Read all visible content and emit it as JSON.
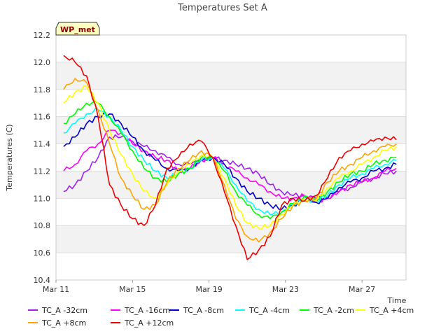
{
  "chart_data": {
    "type": "line",
    "title": "Temperatures Set A",
    "xlabel": "Time",
    "ylabel": "Temperatures (C)",
    "badge": "WP_met",
    "x_ticks": [
      "Mar 11",
      "Mar 15",
      "Mar 19",
      "Mar 23",
      "Mar 27"
    ],
    "x_tick_days": [
      11,
      15,
      19,
      23,
      27
    ],
    "xlim": [
      11,
      29.3
    ],
    "ylim": [
      10.4,
      12.2
    ],
    "y_ticks": [
      10.4,
      10.6,
      10.8,
      11.0,
      11.2,
      11.4,
      11.6,
      11.8,
      12.0,
      12.2
    ],
    "band_color": "#f2f2f2",
    "x": [
      11.4,
      12.0,
      12.6,
      13.2,
      13.8,
      14.4,
      15.0,
      15.6,
      16.2,
      16.8,
      17.4,
      18.0,
      18.6,
      19.2,
      19.8,
      20.4,
      21.0,
      21.6,
      22.2,
      22.8,
      23.4,
      24.0,
      24.6,
      25.2,
      25.8,
      26.4,
      27.0,
      27.6,
      28.2,
      28.8
    ],
    "series": [
      {
        "name": "TC_A -32cm",
        "color": "#a020f0",
        "values": [
          11.05,
          11.1,
          11.2,
          11.3,
          11.45,
          11.45,
          11.42,
          11.38,
          11.35,
          11.3,
          11.25,
          11.25,
          11.28,
          11.3,
          11.28,
          11.25,
          11.22,
          11.18,
          11.1,
          11.05,
          11.02,
          11.02,
          11.0,
          11.0,
          11.05,
          11.08,
          11.12,
          11.15,
          11.18,
          11.2
        ]
      },
      {
        "name": "TC_A -16cm",
        "color": "#ff00ff",
        "values": [
          11.2,
          11.25,
          11.35,
          11.4,
          11.5,
          11.48,
          11.4,
          11.35,
          11.3,
          11.28,
          11.2,
          11.22,
          11.28,
          11.3,
          11.25,
          11.2,
          11.15,
          11.1,
          11.05,
          11.0,
          11.0,
          11.02,
          10.98,
          11.0,
          11.05,
          11.1,
          11.12,
          11.15,
          11.2,
          11.22
        ]
      },
      {
        "name": "TC_A -8cm",
        "color": "#0000cd",
        "values": [
          11.38,
          11.45,
          11.55,
          11.6,
          11.62,
          11.55,
          11.45,
          11.35,
          11.28,
          11.22,
          11.2,
          11.22,
          11.28,
          11.3,
          11.25,
          11.15,
          11.05,
          11.0,
          10.95,
          10.92,
          10.95,
          11.0,
          10.97,
          11.0,
          11.08,
          11.12,
          11.15,
          11.2,
          11.22,
          11.25
        ]
      },
      {
        "name": "TC_A -4cm",
        "color": "#00ffff",
        "values": [
          11.48,
          11.55,
          11.62,
          11.65,
          11.6,
          11.5,
          11.38,
          11.28,
          11.2,
          11.15,
          11.18,
          11.22,
          11.28,
          11.3,
          11.22,
          11.1,
          10.98,
          10.92,
          10.88,
          10.9,
          10.95,
          11.0,
          10.98,
          11.02,
          11.1,
          11.15,
          11.18,
          11.22,
          11.25,
          11.28
        ]
      },
      {
        "name": "TC_A -2cm",
        "color": "#00ff00",
        "values": [
          11.55,
          11.62,
          11.7,
          11.7,
          11.6,
          11.48,
          11.35,
          11.22,
          11.15,
          11.12,
          11.18,
          11.22,
          11.3,
          11.3,
          11.2,
          11.05,
          10.95,
          10.88,
          10.85,
          10.9,
          10.96,
          11.02,
          10.98,
          11.05,
          11.12,
          11.18,
          11.2,
          11.25,
          11.28,
          11.3
        ]
      },
      {
        "name": "TC_A +4cm",
        "color": "#ffff00",
        "values": [
          11.7,
          11.78,
          11.82,
          11.7,
          11.5,
          11.32,
          11.18,
          11.05,
          11.0,
          11.1,
          11.2,
          11.25,
          11.32,
          11.3,
          11.15,
          10.95,
          10.82,
          10.78,
          10.8,
          10.88,
          10.95,
          11.0,
          10.98,
          11.08,
          11.15,
          11.2,
          11.25,
          11.3,
          11.35,
          11.38
        ]
      },
      {
        "name": "TC_A +8cm",
        "color": "#ffa500",
        "values": [
          11.8,
          11.88,
          11.85,
          11.65,
          11.4,
          11.15,
          11.02,
          10.92,
          10.95,
          11.12,
          11.22,
          11.28,
          11.35,
          11.3,
          11.1,
          10.85,
          10.72,
          10.68,
          10.75,
          10.85,
          10.95,
          10.98,
          11.0,
          11.12,
          11.2,
          11.25,
          11.3,
          11.35,
          11.38,
          11.4
        ]
      },
      {
        "name": "TC_A +12cm",
        "color": "#ee0000",
        "values": [
          12.05,
          12.0,
          11.9,
          11.6,
          11.1,
          10.95,
          10.85,
          10.8,
          10.95,
          11.22,
          11.3,
          11.4,
          11.42,
          11.3,
          11.05,
          10.8,
          10.55,
          10.62,
          10.72,
          10.95,
          11.0,
          10.98,
          11.02,
          11.15,
          11.3,
          11.35,
          11.4,
          11.42,
          11.45,
          11.43
        ]
      }
    ]
  }
}
